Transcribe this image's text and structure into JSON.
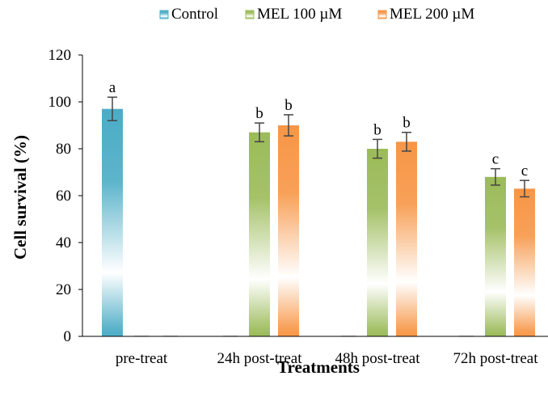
{
  "chart_data": {
    "type": "bar",
    "title": "",
    "xlabel": "Treatments",
    "ylabel": "Cell survival  (%)",
    "ylim": [
      0,
      120
    ],
    "yticks": [
      0,
      20,
      40,
      60,
      80,
      100,
      120
    ],
    "categories": [
      "pre-treat",
      "24h post-treat",
      "48h post-treat",
      "72h post-treat"
    ],
    "legend_position": "top",
    "grid": false,
    "series": [
      {
        "name": "Control",
        "color": "#4bacc6",
        "values": [
          97,
          0,
          0,
          0
        ],
        "errors": [
          5,
          0,
          0,
          0
        ],
        "labels": [
          "a",
          "",
          "",
          ""
        ]
      },
      {
        "name": "MEL 100 µM",
        "color": "#9bbb59",
        "values": [
          0,
          87,
          80,
          68
        ],
        "errors": [
          0,
          4,
          4,
          3.5
        ],
        "labels": [
          "",
          "b",
          "b",
          "c"
        ]
      },
      {
        "name": "MEL 200 µM",
        "color": "#f79646",
        "values": [
          0,
          90,
          83,
          63
        ],
        "errors": [
          0,
          4.5,
          4,
          3.5
        ],
        "labels": [
          "",
          "b",
          "b",
          "c"
        ]
      }
    ]
  }
}
